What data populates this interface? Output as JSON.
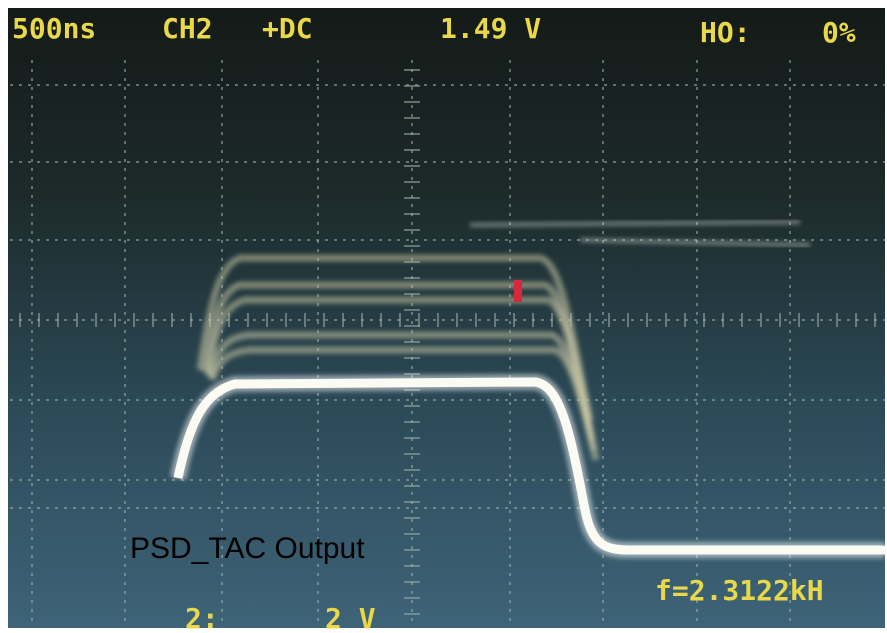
{
  "header": {
    "timebase": "500ns",
    "channel": "CH2",
    "coupling": "+DC",
    "level": "1.49 V",
    "holdoff_label": "HO:",
    "holdoff_value": "0%"
  },
  "annotation": "PSD_TAC Output",
  "frequency": "f=2.3122kH",
  "scale": {
    "channel": "2:",
    "volts": "2 V"
  }
}
